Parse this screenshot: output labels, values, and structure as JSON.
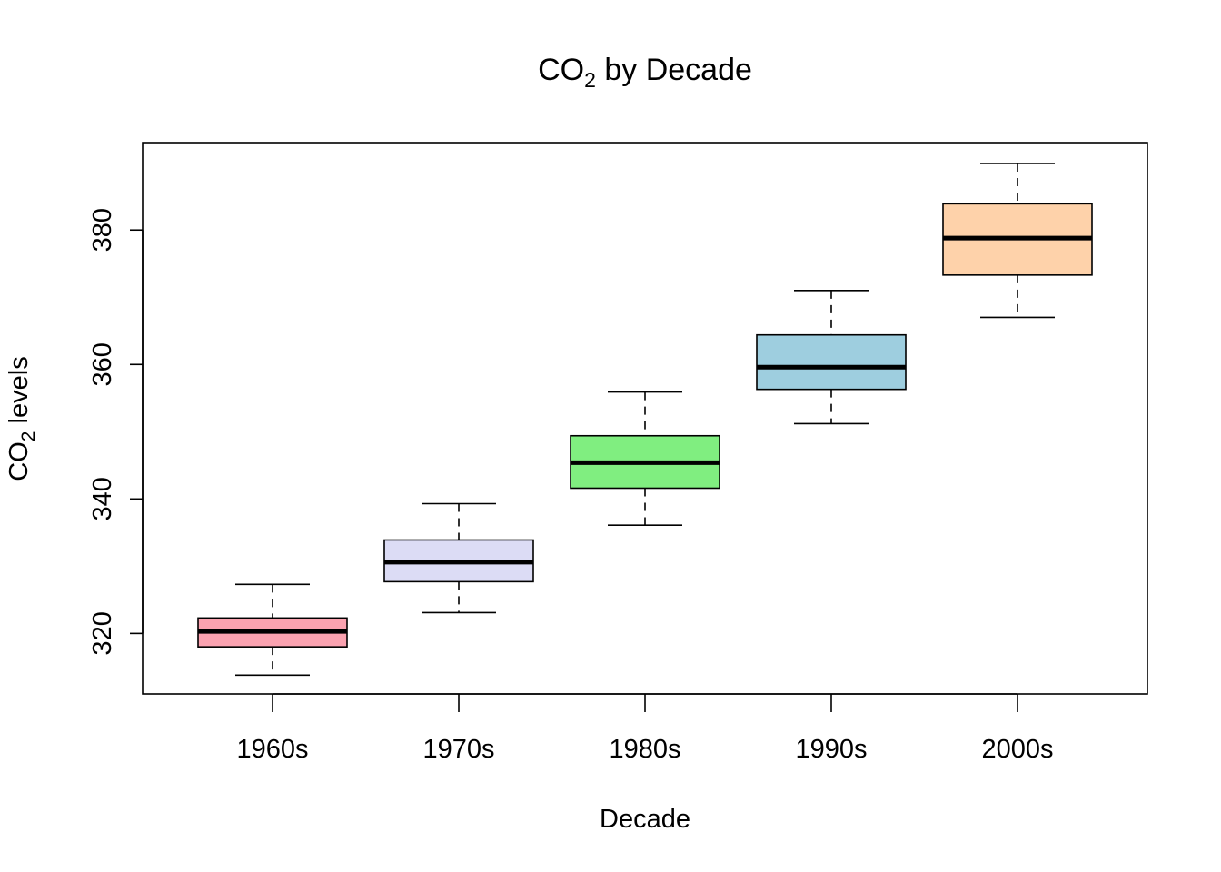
{
  "chart_data": {
    "type": "boxplot",
    "title": {
      "base": "CO",
      "sub": "2",
      "rest": " by Decade"
    },
    "xlabel": "Decade",
    "ylabel": {
      "base": "CO",
      "sub": "2",
      "rest": " levels"
    },
    "ylim": [
      311,
      393
    ],
    "yticks": [
      320,
      340,
      360,
      380
    ],
    "categories": [
      "1960s",
      "1970s",
      "1980s",
      "1990s",
      "2000s"
    ],
    "boxes": [
      {
        "label": "1960s",
        "min": 313.8,
        "q1": 318.0,
        "median": 320.3,
        "q3": 322.3,
        "max": 327.3,
        "color": "#FBA2B0"
      },
      {
        "label": "1970s",
        "min": 323.1,
        "q1": 327.7,
        "median": 330.6,
        "q3": 333.9,
        "max": 339.3,
        "color": "#DCDCF5"
      },
      {
        "label": "1980s",
        "min": 336.1,
        "q1": 341.6,
        "median": 345.4,
        "q3": 349.4,
        "max": 355.9,
        "color": "#80EE80"
      },
      {
        "label": "1990s",
        "min": 351.2,
        "q1": 356.3,
        "median": 359.6,
        "q3": 364.4,
        "max": 371.0,
        "color": "#9ECEDF"
      },
      {
        "label": "2000s",
        "min": 367.0,
        "q1": 373.3,
        "median": 378.8,
        "q3": 383.9,
        "max": 389.9,
        "color": "#FED2AA"
      }
    ]
  }
}
